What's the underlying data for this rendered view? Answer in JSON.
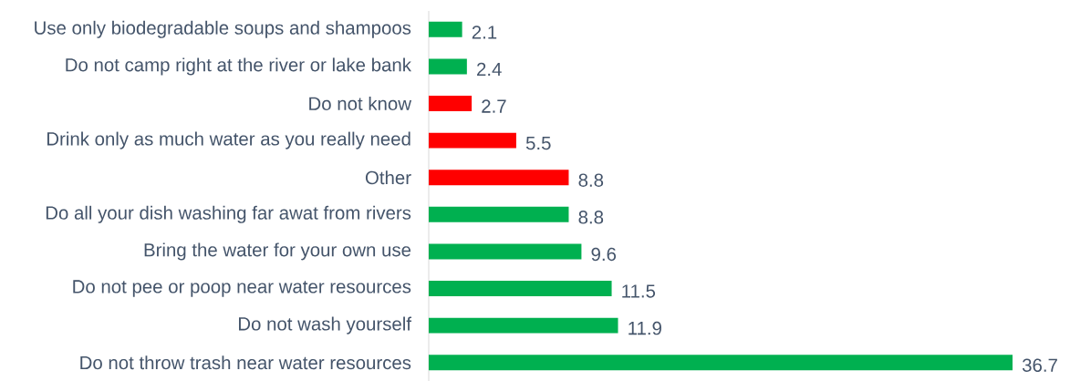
{
  "chart_data": {
    "type": "bar",
    "orientation": "horizontal",
    "data_labels": true,
    "categories": [
      "Use only biodegradable soups and shampoos",
      "Do not camp right at the river or lake bank",
      "Do not know",
      "Drink only as much water as you really need",
      "Other",
      "Do all your dish washing far awat from rivers",
      "Bring the water for your own use",
      "Do not pee or poop near water resources",
      "Do not wash yourself",
      "Do not throw trash near water resources"
    ],
    "values": [
      2.1,
      2.4,
      2.7,
      5.5,
      8.8,
      8.8,
      9.6,
      11.5,
      11.9,
      36.7
    ],
    "colors": [
      "#00b050",
      "#00b050",
      "#ff0000",
      "#ff0000",
      "#ff0000",
      "#00b050",
      "#00b050",
      "#00b050",
      "#00b050",
      "#00b050"
    ]
  }
}
